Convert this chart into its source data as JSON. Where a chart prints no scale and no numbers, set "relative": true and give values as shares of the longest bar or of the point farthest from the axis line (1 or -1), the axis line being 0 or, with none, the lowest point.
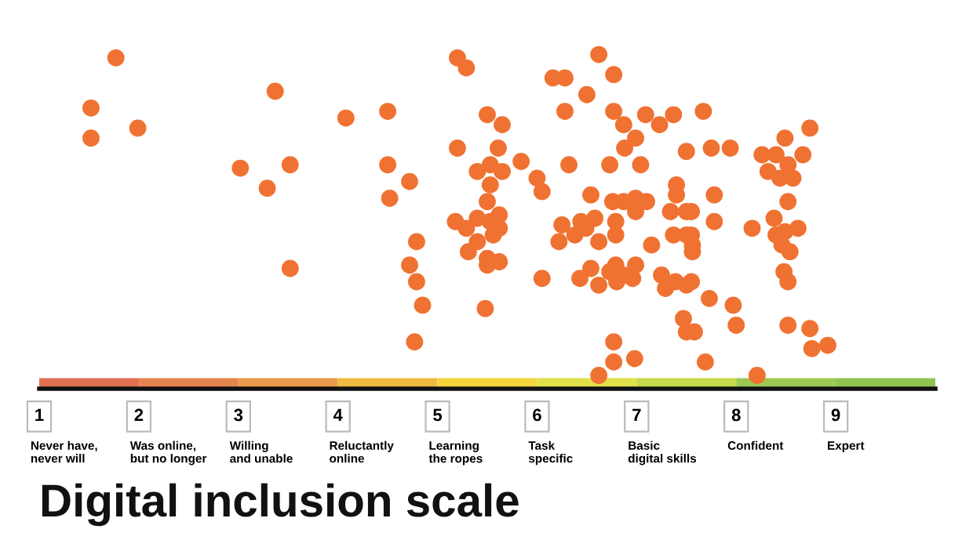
{
  "chart_data": {
    "type": "scatter",
    "title": "Digital inclusion scale",
    "relative": true,
    "marker": "circle",
    "grid": false,
    "legend": false,
    "xlim": [
      1,
      10
    ],
    "xticks": [
      1,
      2,
      3,
      4,
      5,
      6,
      7,
      8,
      9
    ],
    "annotations": [
      "Never have,\nnever will",
      "Was online,\nbut no longer",
      "Willing\nand unable",
      "Reluctantly\nonline",
      "Learning\nthe ropes",
      "Task\nspecific",
      "Basic\ndigital skills",
      "Confident",
      "Expert"
    ],
    "series": [
      {
        "color": "#f07232",
        "x": [
          1.77,
          1.52,
          1.52,
          1.99,
          3.37,
          4.08,
          3.02,
          3.52,
          3.29,
          3.52,
          5.2,
          5.29,
          6.16,
          6.28,
          4.5,
          6.28,
          5.5,
          5.65,
          5.2,
          5.61,
          4.5,
          5.84,
          6.32,
          4.72,
          5.4,
          5.53,
          5.65,
          5.53,
          6.0,
          6.05,
          4.52,
          5.5,
          5.4,
          5.62,
          5.18,
          5.53,
          5.62,
          5.29,
          5.56,
          6.25,
          6.22,
          4.79,
          5.4,
          5.31,
          5.5,
          5.62,
          5.5,
          4.72,
          4.79,
          6.05,
          4.85,
          5.48,
          4.77,
          6.62,
          6.77,
          6.5,
          6.77,
          6.87,
          7.09,
          7.23,
          7.37,
          6.99,
          6.88,
          7.5,
          6.73,
          7.04,
          6.54,
          7.4,
          7.4,
          6.76,
          6.87,
          6.99,
          7.1,
          6.99,
          7.34,
          7.5,
          6.58,
          6.44,
          6.79,
          6.49,
          6.38,
          6.62,
          6.79,
          7.15,
          7.37,
          7.5,
          6.43,
          6.54,
          6.62,
          6.79,
          6.73,
          6.87,
          6.8,
          6.99,
          6.96,
          7.25,
          7.29,
          7.39,
          7.5,
          7.47,
          7.5,
          6.77,
          6.98,
          6.77,
          6.62,
          7.67,
          7.75,
          7.94,
          8.74,
          8.49,
          8.26,
          8.4,
          8.52,
          8.67,
          8.32,
          8.44,
          8.57,
          7.78,
          7.55,
          7.78,
          8.52,
          8.38,
          8.16,
          7.55,
          7.56,
          7.56,
          8.4,
          8.49,
          8.62,
          8.46,
          8.54,
          8.48,
          8.52,
          7.55,
          7.73,
          7.97,
          8.0,
          7.58,
          8.52,
          8.74,
          8.76,
          8.92,
          7.69,
          8.21
        ],
        "values": [
          0.99,
          0.84,
          0.75,
          0.78,
          0.89,
          0.81,
          0.66,
          0.67,
          0.6,
          0.36,
          0.99,
          0.96,
          0.93,
          0.93,
          0.83,
          0.83,
          0.82,
          0.79,
          0.72,
          0.72,
          0.67,
          0.68,
          0.67,
          0.62,
          0.65,
          0.67,
          0.65,
          0.61,
          0.63,
          0.59,
          0.57,
          0.56,
          0.51,
          0.52,
          0.5,
          0.5,
          0.48,
          0.48,
          0.46,
          0.49,
          0.44,
          0.44,
          0.44,
          0.41,
          0.39,
          0.38,
          0.37,
          0.37,
          0.32,
          0.33,
          0.25,
          0.24,
          0.14,
          1.0,
          0.94,
          0.88,
          0.83,
          0.79,
          0.82,
          0.79,
          0.82,
          0.75,
          0.72,
          0.71,
          0.67,
          0.67,
          0.58,
          0.61,
          0.58,
          0.56,
          0.56,
          0.57,
          0.56,
          0.53,
          0.53,
          0.53,
          0.51,
          0.5,
          0.5,
          0.48,
          0.46,
          0.44,
          0.46,
          0.43,
          0.46,
          0.46,
          0.33,
          0.36,
          0.31,
          0.37,
          0.35,
          0.34,
          0.32,
          0.37,
          0.33,
          0.34,
          0.3,
          0.32,
          0.31,
          0.21,
          0.17,
          0.14,
          0.09,
          0.08,
          0.04,
          0.83,
          0.72,
          0.72,
          0.78,
          0.75,
          0.7,
          0.7,
          0.67,
          0.7,
          0.65,
          0.63,
          0.63,
          0.58,
          0.53,
          0.5,
          0.56,
          0.51,
          0.48,
          0.46,
          0.43,
          0.41,
          0.46,
          0.47,
          0.48,
          0.43,
          0.41,
          0.35,
          0.32,
          0.32,
          0.27,
          0.25,
          0.19,
          0.17,
          0.19,
          0.18,
          0.12,
          0.13,
          0.08,
          0.04
        ]
      }
    ]
  }
}
